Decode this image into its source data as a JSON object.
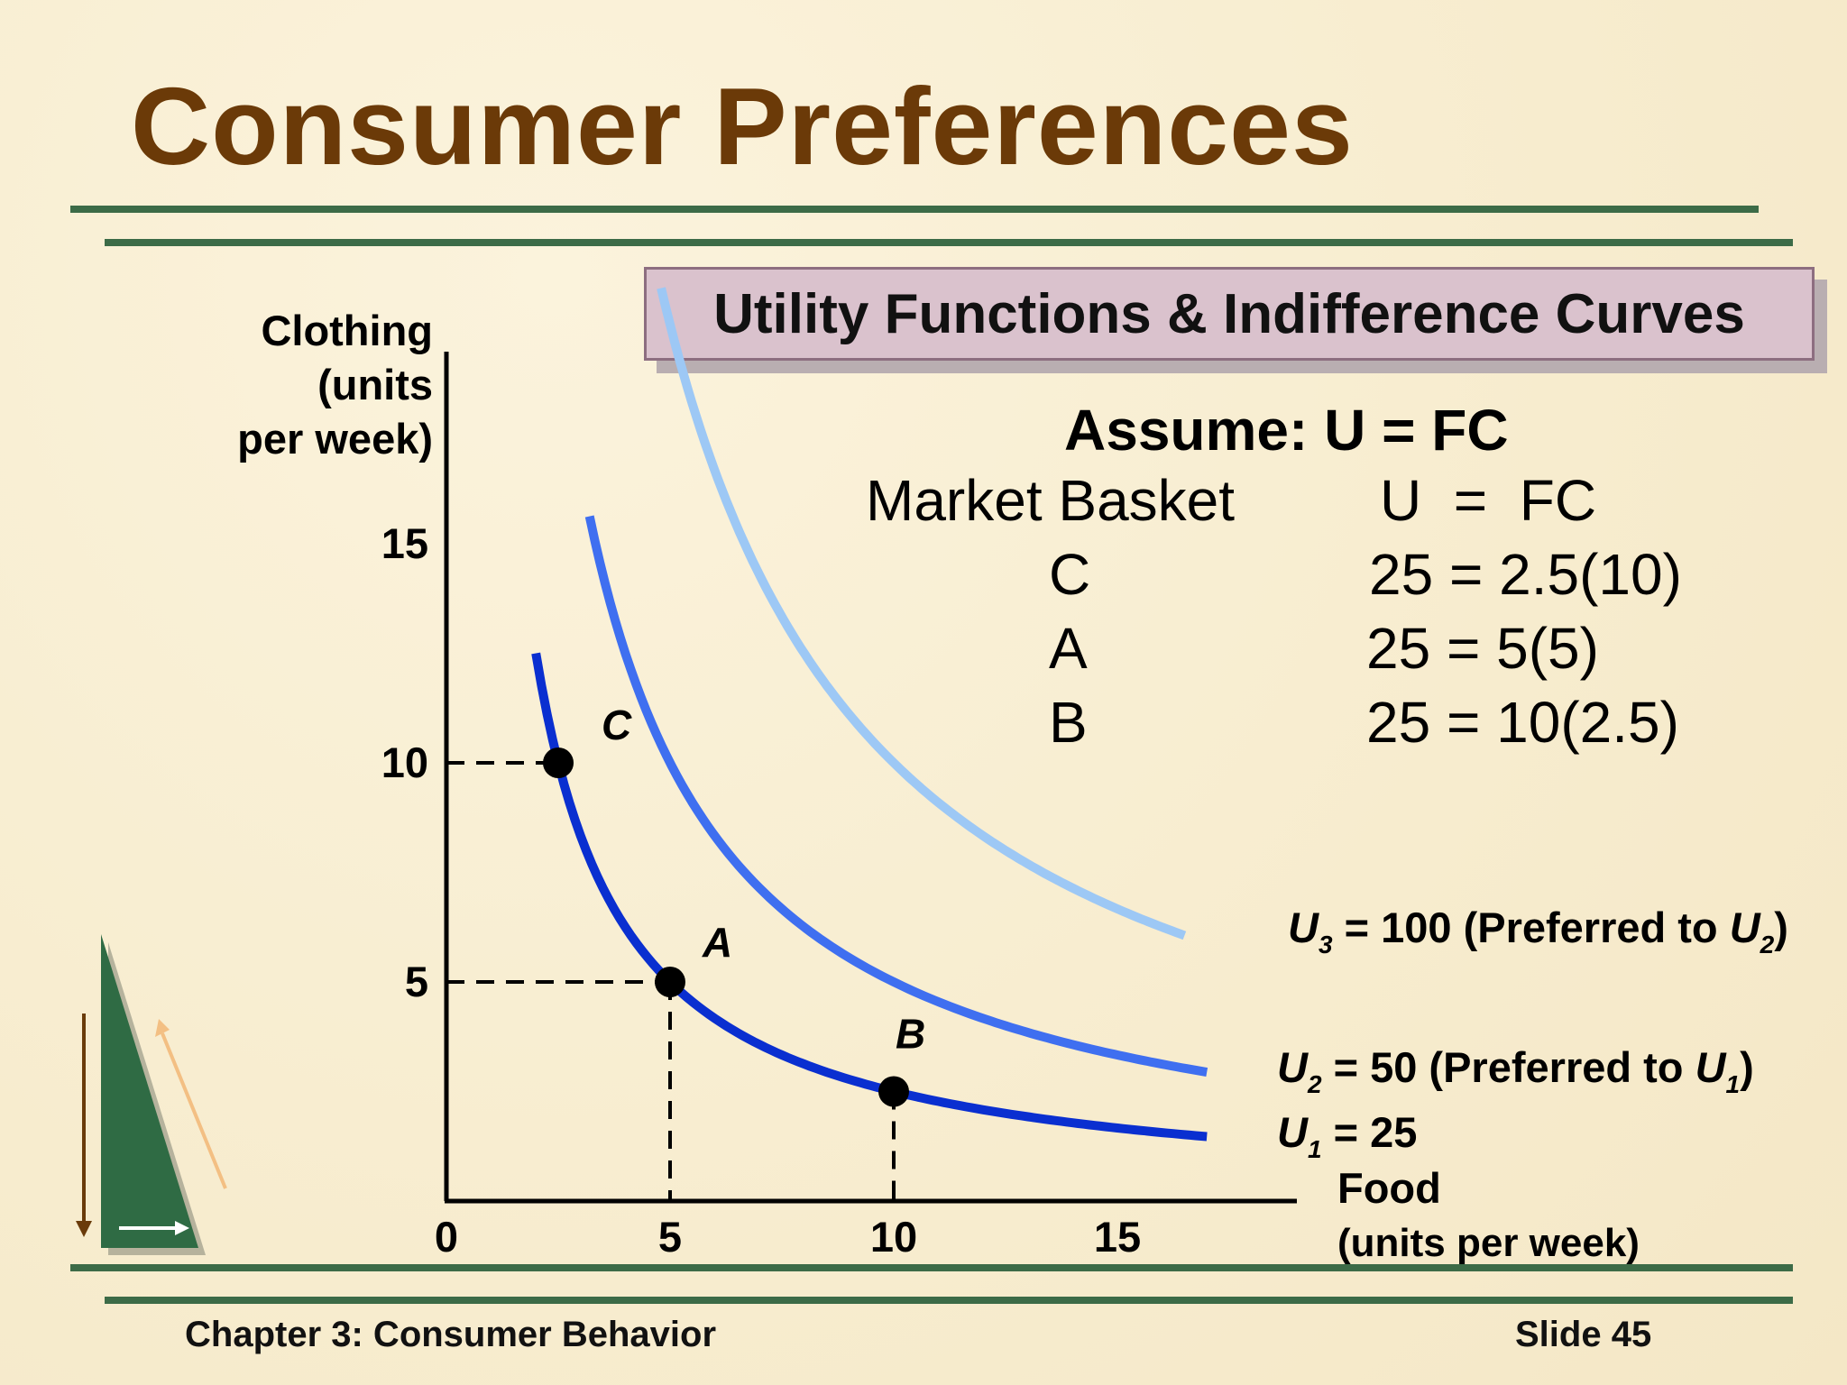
{
  "slide": {
    "title": "Consumer Preferences",
    "subtitle": "Utility Functions & Indifference Curves",
    "assume": "Assume: U = FC",
    "table": {
      "headers": [
        "Market Basket",
        "U  =  FC"
      ],
      "rows": [
        {
          "basket": "C",
          "calc": "25 = 2.5(10)"
        },
        {
          "basket": "A",
          "calc": "25 = 5(5)"
        },
        {
          "basket": "B",
          "calc": "25 = 10(2.5)"
        }
      ]
    },
    "footer_left": "Chapter 3: Consumer Behavior",
    "footer_right": "Slide 45",
    "colors": {
      "title": "#6b3a08",
      "rule": "#3c6b47",
      "u1": "#0a2fd0",
      "u2": "#3f6ff0",
      "u3": "#9dc8f5",
      "subtitle_box": "#dac2cd"
    },
    "icon": "triangle-navigation-icon"
  },
  "chart_data": {
    "type": "line",
    "title": "",
    "ylabel_lines": [
      "Clothing",
      "(units",
      "per week)"
    ],
    "xlabel_lines": [
      "Food",
      "(units per week)"
    ],
    "xlim": [
      0,
      18.5
    ],
    "ylim": [
      0,
      19.5
    ],
    "x_ticks": [
      0,
      5,
      10,
      15
    ],
    "y_ticks": [
      5,
      10,
      15
    ],
    "series": [
      {
        "name": "U1",
        "label_main": "U",
        "label_sub": "1",
        "label_rest": " = 25",
        "utility": 25,
        "x_range": [
          2,
          17
        ],
        "color": "#0a2fd0"
      },
      {
        "name": "U2",
        "label_main": "U",
        "label_sub": "2",
        "label_rest": " = 50 (Preferred to ",
        "label_main2": "U",
        "label_sub2": "1",
        "label_end": ")",
        "utility": 50,
        "x_range": [
          3.2,
          17
        ],
        "color": "#3f6ff0"
      },
      {
        "name": "U3",
        "label_main": "U",
        "label_sub": "3",
        "label_rest": " = 100 (Preferred to ",
        "label_main2": "U",
        "label_sub2": "2",
        "label_end": ")",
        "utility": 100,
        "x_range": [
          4.8,
          16.5
        ],
        "color": "#9dc8f5"
      }
    ],
    "points": [
      {
        "label": "C",
        "x": 2.5,
        "y": 10
      },
      {
        "label": "A",
        "x": 5,
        "y": 5
      },
      {
        "label": "B",
        "x": 10,
        "y": 2.5
      }
    ],
    "dashed_guides": true
  }
}
